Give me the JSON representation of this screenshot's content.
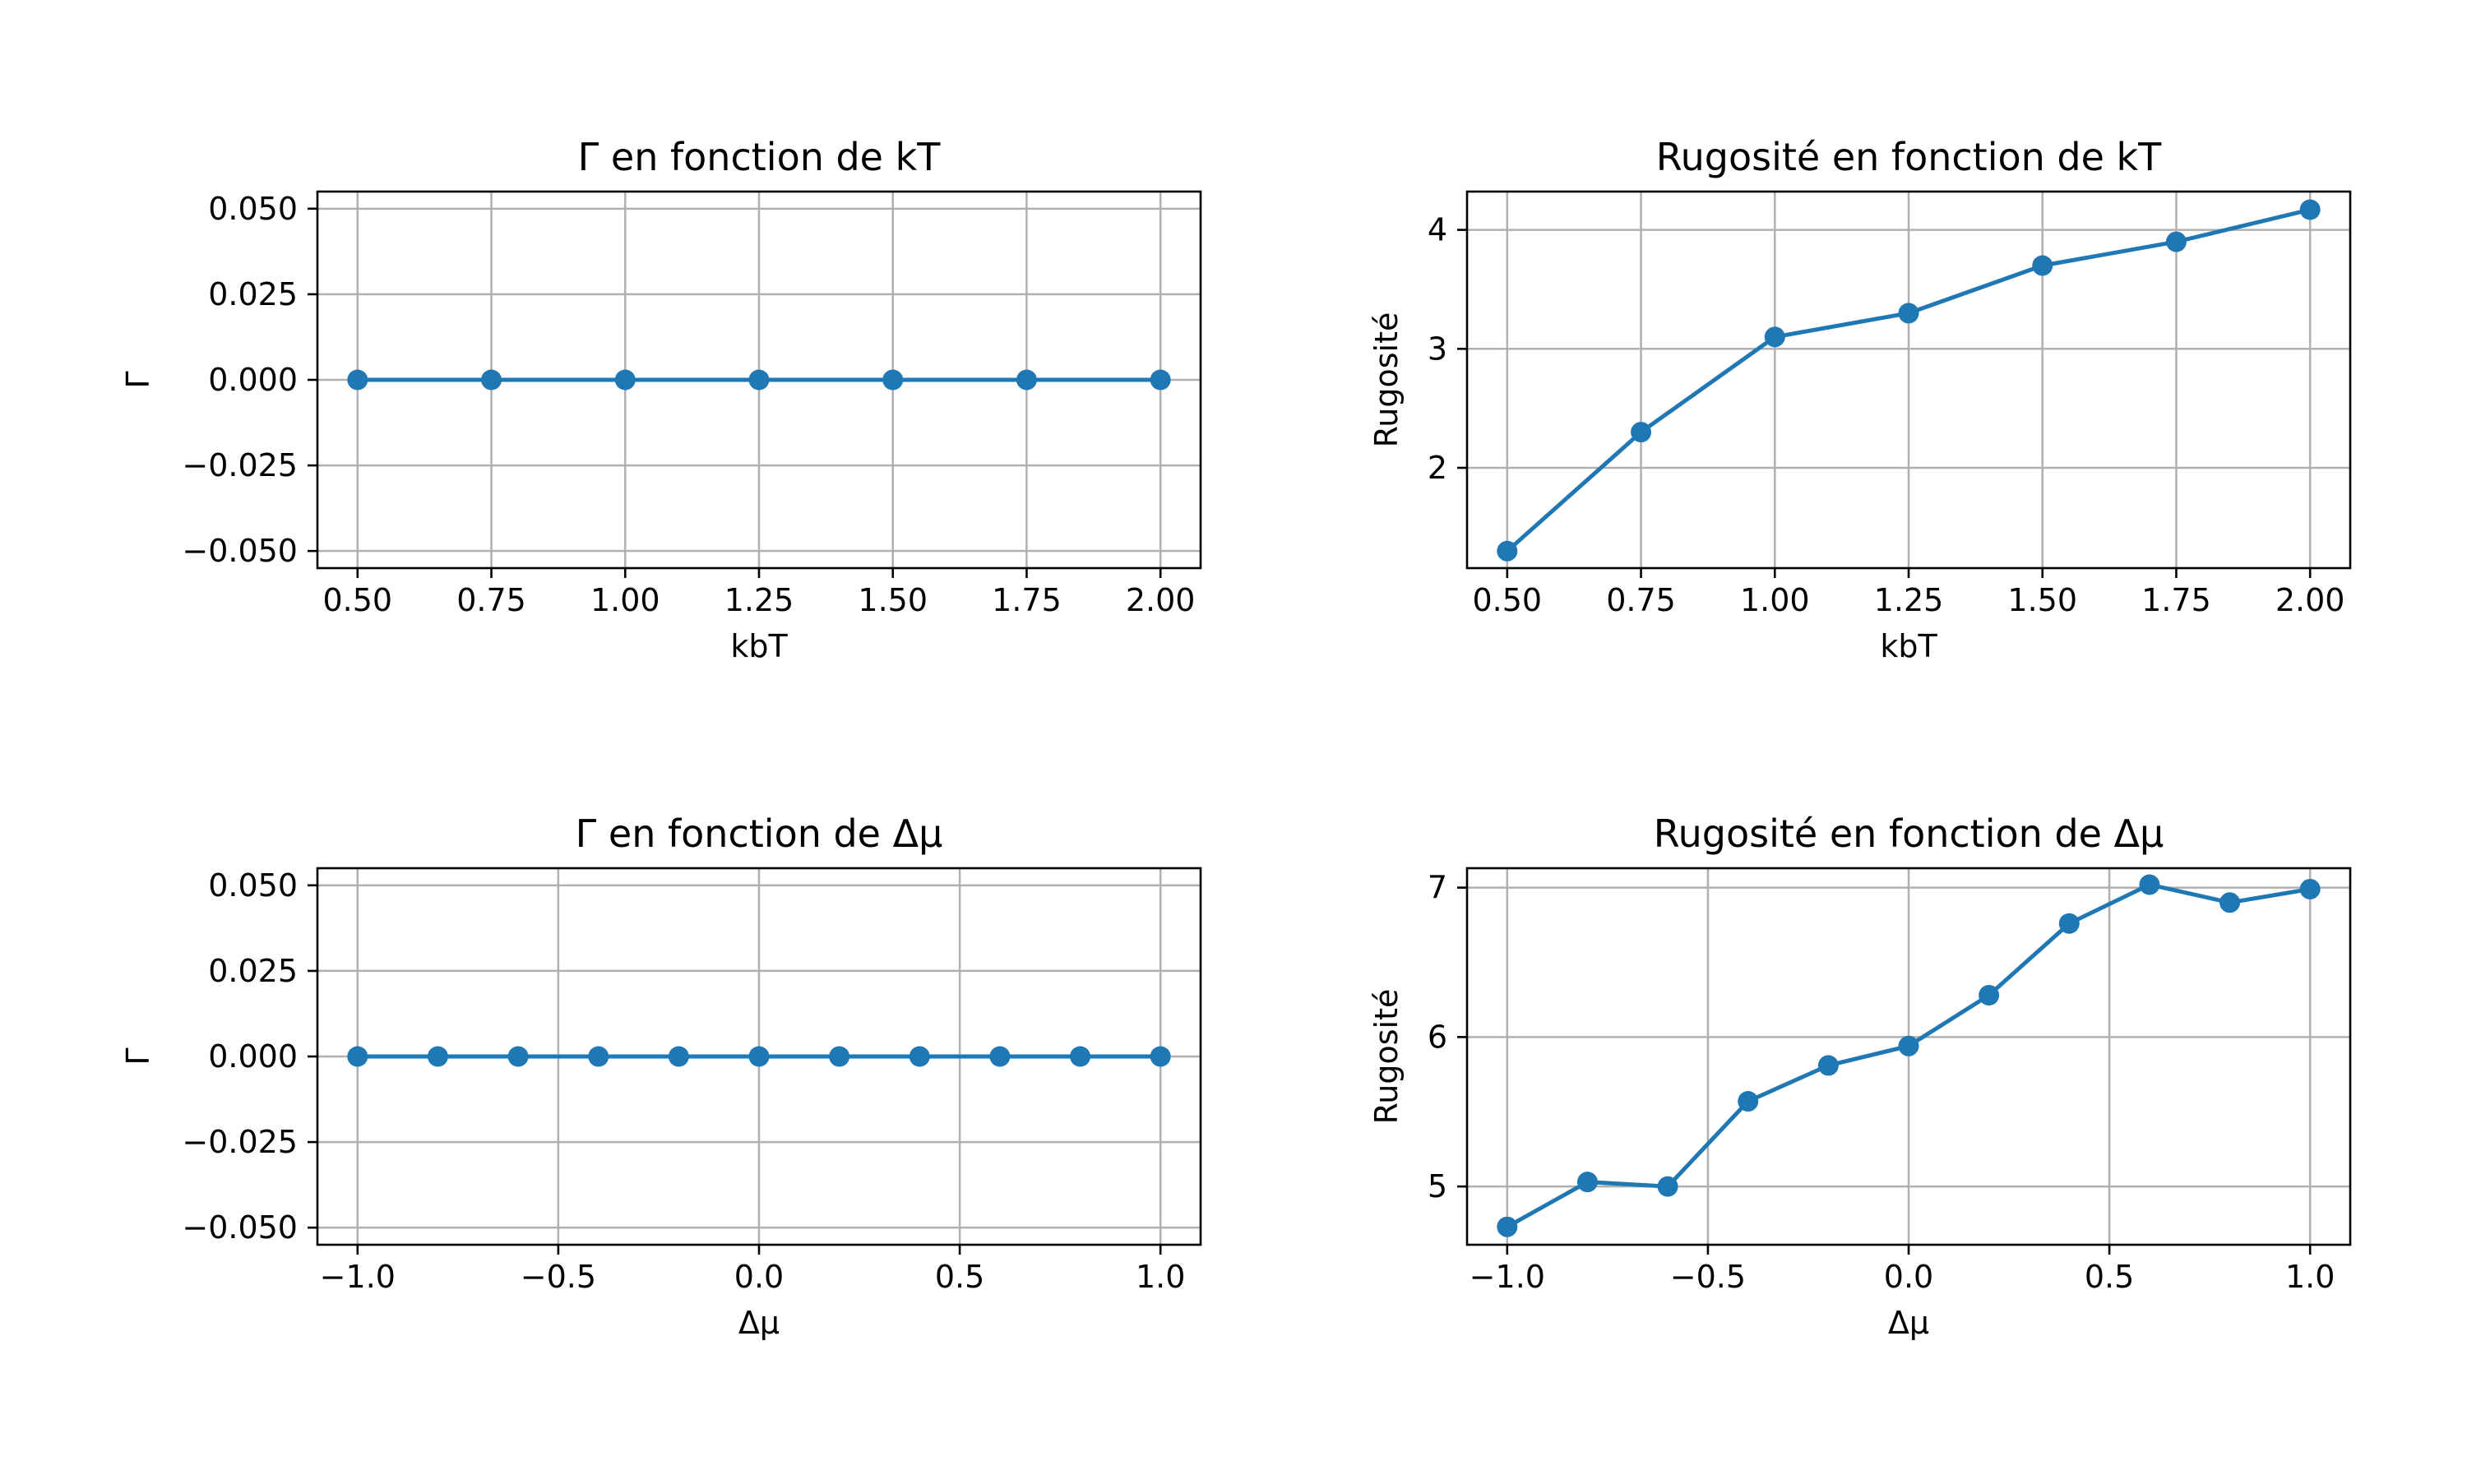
{
  "colors": {
    "series": "#1f77b4",
    "grid": "#b0b0b0",
    "axes": "#000000",
    "background": "#ffffff"
  },
  "chart_data": [
    {
      "type": "line",
      "title": "Γ en fonction de kT",
      "xlabel": "kbT",
      "ylabel": "Γ",
      "grid": true,
      "marker": "circle",
      "xlim": [
        0.425,
        2.075
      ],
      "ylim": [
        -0.055,
        0.055
      ],
      "xticks": [
        0.5,
        0.75,
        1.0,
        1.25,
        1.5,
        1.75,
        2.0
      ],
      "xtick_labels": [
        "0.50",
        "0.75",
        "1.00",
        "1.25",
        "1.50",
        "1.75",
        "2.00"
      ],
      "yticks": [
        -0.05,
        -0.025,
        0.0,
        0.025,
        0.05
      ],
      "ytick_labels": [
        "−0.050",
        "−0.025",
        "0.000",
        "0.025",
        "0.050"
      ],
      "x": [
        0.5,
        0.75,
        1.0,
        1.25,
        1.5,
        1.75,
        2.0
      ],
      "y": [
        0,
        0,
        0,
        0,
        0,
        0,
        0
      ]
    },
    {
      "type": "line",
      "title": "Rugosité en fonction de kT",
      "xlabel": "kbT",
      "ylabel": "Rugosité",
      "grid": true,
      "marker": "circle",
      "xlim": [
        0.425,
        2.075
      ],
      "ylim": [
        1.157,
        4.322
      ],
      "xticks": [
        0.5,
        0.75,
        1.0,
        1.25,
        1.5,
        1.75,
        2.0
      ],
      "xtick_labels": [
        "0.50",
        "0.75",
        "1.00",
        "1.25",
        "1.50",
        "1.75",
        "2.00"
      ],
      "yticks": [
        2,
        3,
        4
      ],
      "ytick_labels": [
        "2",
        "3",
        "4"
      ],
      "x": [
        0.5,
        0.75,
        1.0,
        1.25,
        1.5,
        1.75,
        2.0
      ],
      "y": [
        1.3,
        2.3,
        3.1,
        3.3,
        3.7,
        3.9,
        4.17
      ]
    },
    {
      "type": "line",
      "title": "Γ en fonction de Δμ",
      "xlabel": "Δμ",
      "ylabel": "Γ",
      "grid": true,
      "marker": "circle",
      "xlim": [
        -1.1,
        1.1
      ],
      "ylim": [
        -0.055,
        0.055
      ],
      "xticks": [
        -1.0,
        -0.5,
        0.0,
        0.5,
        1.0
      ],
      "xtick_labels": [
        "−1.0",
        "−0.5",
        "0.0",
        "0.5",
        "1.0"
      ],
      "yticks": [
        -0.05,
        -0.025,
        0.0,
        0.025,
        0.05
      ],
      "ytick_labels": [
        "−0.050",
        "−0.025",
        "0.000",
        "0.025",
        "0.050"
      ],
      "x": [
        -1.0,
        -0.8,
        -0.6,
        -0.4,
        -0.2,
        0.0,
        0.2,
        0.4,
        0.6,
        0.8,
        1.0
      ],
      "y": [
        0,
        0,
        0,
        0,
        0,
        0,
        0,
        0,
        0,
        0,
        0
      ]
    },
    {
      "type": "line",
      "title": "Rugosité en fonction de Δμ",
      "xlabel": "Δμ",
      "ylabel": "Rugosité",
      "grid": true,
      "marker": "circle",
      "xlim": [
        -1.1,
        1.1
      ],
      "ylim": [
        4.61,
        7.13
      ],
      "xticks": [
        -1.0,
        -0.5,
        0.0,
        0.5,
        1.0
      ],
      "xtick_labels": [
        "−1.0",
        "−0.5",
        "0.0",
        "0.5",
        "1.0"
      ],
      "yticks": [
        5,
        6,
        7
      ],
      "ytick_labels": [
        "5",
        "6",
        "7"
      ],
      "x": [
        -1.0,
        -0.8,
        -0.6,
        -0.4,
        -0.2,
        0.0,
        0.2,
        0.4,
        0.6,
        0.8,
        1.0
      ],
      "y": [
        4.73,
        5.03,
        5.0,
        5.57,
        5.81,
        5.94,
        6.28,
        6.76,
        7.02,
        6.9,
        6.99
      ]
    }
  ]
}
